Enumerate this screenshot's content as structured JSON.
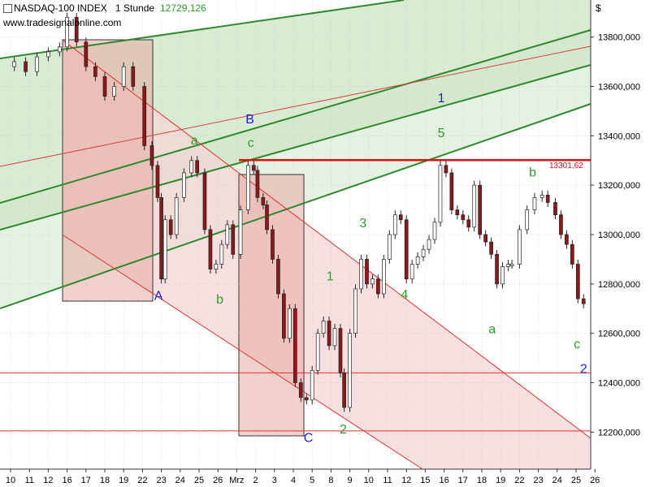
{
  "header": {
    "symbol": "NASDAQ-100 INDEX",
    "interval": "1 Stunde",
    "last_price": "12729,126",
    "website": "www.tradesignalonline.com",
    "currency": "$"
  },
  "chart_data": {
    "type": "candlestick",
    "title": "NASDAQ-100 INDEX",
    "ylim": [
      12050,
      13950
    ],
    "y_ticks": [
      12200,
      12400,
      12600,
      12800,
      13000,
      13200,
      13400,
      13600,
      13800
    ],
    "y_tick_labels": [
      "12200,000",
      "12400,000",
      "12600,000",
      "12800,000",
      "13000,000",
      "13200,000",
      "13400,000",
      "13600,000",
      "13800,000"
    ],
    "x_ticks": [
      "10",
      "11",
      "12",
      "16",
      "17",
      "18",
      "19",
      "22",
      "23",
      "24",
      "25",
      "26",
      "Mrz",
      "2",
      "3",
      "4",
      "5",
      "8",
      "9",
      "10",
      "11",
      "12",
      "15",
      "16",
      "17",
      "18",
      "19",
      "22",
      "23",
      "24",
      "25",
      "26"
    ],
    "x_tick_days": [
      0,
      1,
      2,
      3,
      4,
      5,
      6,
      7,
      8,
      9,
      10,
      11,
      12,
      13,
      14,
      15,
      16,
      17,
      18,
      19,
      20,
      21,
      22,
      23,
      24,
      25,
      26,
      27,
      28,
      29,
      30,
      31
    ],
    "resistance_level": 13301.62,
    "resistance_label": "13301,62",
    "horizontal_lines": [
      12440,
      12205
    ],
    "wave_labels": [
      {
        "text": "A",
        "day": 7.85,
        "price": 12735,
        "color": "#1f1fd0"
      },
      {
        "text": "B",
        "day": 12.7,
        "price": 13450,
        "color": "#1f1fd0"
      },
      {
        "text": "C",
        "day": 15.8,
        "price": 12160,
        "color": "#1f1fd0"
      },
      {
        "text": "1",
        "day": 22.85,
        "price": 13535,
        "color": "#1f1fd0"
      },
      {
        "text": "2",
        "day": 30.4,
        "price": 12440,
        "color": "#1f1fd0"
      },
      {
        "text": "a",
        "day": 9.75,
        "price": 13365,
        "color": "#2e9a2e"
      },
      {
        "text": "b",
        "day": 11.1,
        "price": 12720,
        "color": "#2e9a2e"
      },
      {
        "text": "c",
        "day": 12.75,
        "price": 13355,
        "color": "#2e9a2e"
      },
      {
        "text": "1",
        "day": 16.95,
        "price": 12815,
        "color": "#2e9a2e"
      },
      {
        "text": "2",
        "day": 17.65,
        "price": 12195,
        "color": "#2e9a2e"
      },
      {
        "text": "3",
        "day": 18.7,
        "price": 13030,
        "color": "#2e9a2e"
      },
      {
        "text": "4",
        "day": 20.9,
        "price": 12740,
        "color": "#2e9a2e"
      },
      {
        "text": "5",
        "day": 22.85,
        "price": 13395,
        "color": "#2e9a2e"
      },
      {
        "text": "a",
        "day": 25.55,
        "price": 12600,
        "color": "#2e9a2e"
      },
      {
        "text": "b",
        "day": 27.7,
        "price": 13235,
        "color": "#2e9a2e"
      },
      {
        "text": "c",
        "day": 30.05,
        "price": 12540,
        "color": "#2e9a2e"
      }
    ],
    "series": [
      {
        "points": [
          [
            0.2,
            13700
          ],
          [
            0.8,
            13660
          ],
          [
            1.4,
            13720
          ],
          [
            2.0,
            13740
          ],
          [
            2.6,
            13760
          ],
          [
            3.0,
            13880
          ],
          [
            3.5,
            13780
          ],
          [
            4.0,
            13680
          ],
          [
            4.5,
            13640
          ],
          [
            5.0,
            13560
          ],
          [
            5.5,
            13600
          ],
          [
            6.0,
            13680
          ],
          [
            6.5,
            13600
          ],
          [
            7.1,
            13360
          ],
          [
            7.5,
            13280
          ],
          [
            7.8,
            13150
          ],
          [
            8.0,
            12820
          ],
          [
            8.2,
            13060
          ],
          [
            8.5,
            13000
          ],
          [
            8.8,
            13150
          ],
          [
            9.2,
            13250
          ],
          [
            9.6,
            13300
          ],
          [
            9.9,
            13250
          ],
          [
            10.3,
            13020
          ],
          [
            10.6,
            12860
          ],
          [
            10.9,
            12880
          ],
          [
            11.2,
            12960
          ],
          [
            11.5,
            13040
          ],
          [
            11.8,
            12920
          ],
          [
            12.2,
            13100
          ],
          [
            12.6,
            13280
          ],
          [
            12.9,
            13260
          ],
          [
            13.1,
            13150
          ],
          [
            13.4,
            13120
          ],
          [
            13.6,
            13020
          ],
          [
            13.9,
            12900
          ],
          [
            14.2,
            12760
          ],
          [
            14.5,
            12580
          ],
          [
            14.8,
            12700
          ],
          [
            15.1,
            12400
          ],
          [
            15.4,
            12340
          ],
          [
            15.7,
            12330
          ],
          [
            16.0,
            12450
          ],
          [
            16.3,
            12600
          ],
          [
            16.6,
            12650
          ],
          [
            16.9,
            12550
          ],
          [
            17.2,
            12620
          ],
          [
            17.5,
            12440
          ],
          [
            17.7,
            12300
          ],
          [
            18.0,
            12600
          ],
          [
            18.3,
            12780
          ],
          [
            18.6,
            12900
          ],
          [
            18.9,
            12800
          ],
          [
            19.2,
            12820
          ],
          [
            19.5,
            12760
          ],
          [
            19.8,
            12900
          ],
          [
            20.1,
            13000
          ],
          [
            20.4,
            13080
          ],
          [
            20.7,
            13060
          ],
          [
            21.0,
            12820
          ],
          [
            21.3,
            12880
          ],
          [
            21.6,
            12910
          ],
          [
            21.9,
            12940
          ],
          [
            22.2,
            12980
          ],
          [
            22.5,
            13050
          ],
          [
            22.8,
            13280
          ],
          [
            23.1,
            13250
          ],
          [
            23.4,
            13100
          ],
          [
            23.7,
            13080
          ],
          [
            24.0,
            13060
          ],
          [
            24.3,
            13030
          ],
          [
            24.6,
            13200
          ],
          [
            24.9,
            13000
          ],
          [
            25.2,
            12970
          ],
          [
            25.5,
            12920
          ],
          [
            25.8,
            12800
          ],
          [
            26.1,
            12870
          ],
          [
            26.4,
            12880
          ],
          [
            26.6,
            12880
          ],
          [
            27.0,
            13020
          ],
          [
            27.4,
            13100
          ],
          [
            27.8,
            13150
          ],
          [
            28.2,
            13160
          ],
          [
            28.5,
            13130
          ],
          [
            28.9,
            13080
          ],
          [
            29.2,
            13000
          ],
          [
            29.5,
            12960
          ],
          [
            29.8,
            12880
          ],
          [
            30.1,
            12740
          ],
          [
            30.4,
            12720
          ]
        ]
      }
    ]
  }
}
